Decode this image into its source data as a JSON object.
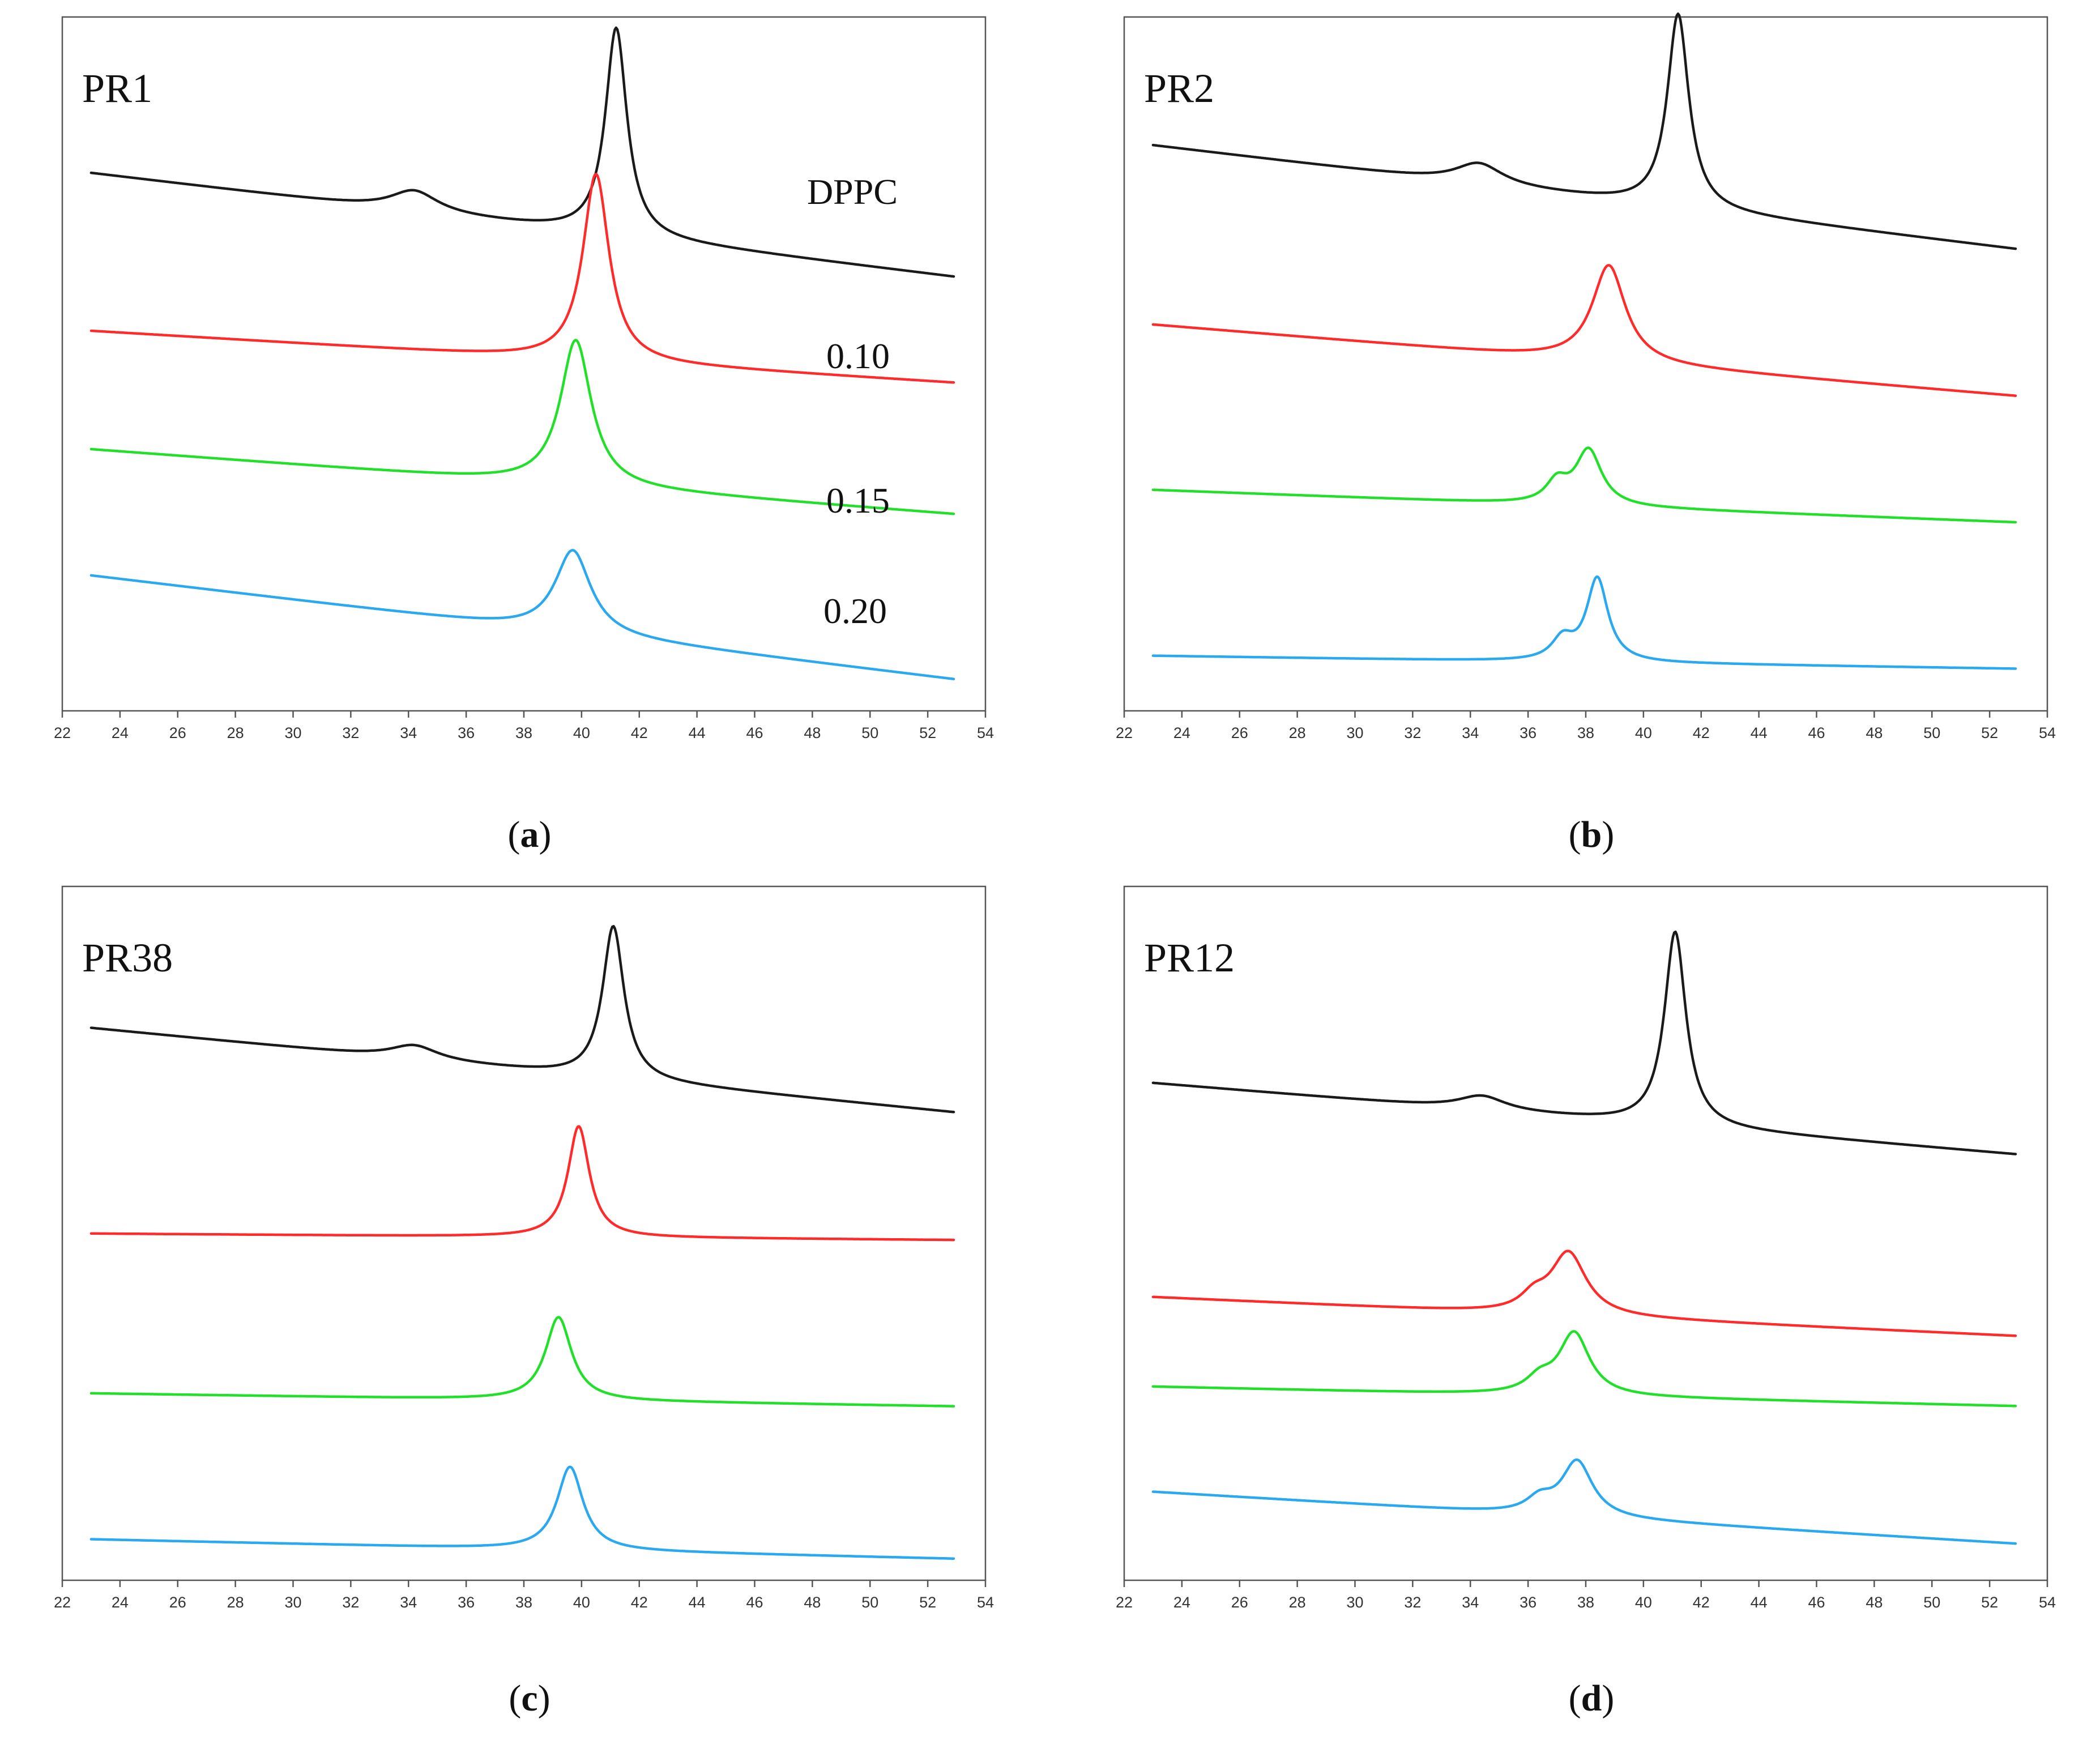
{
  "colors": {
    "DPPC": "#1a1a1a",
    "0.10": "#ff2a2a",
    "0.15": "#22e02a",
    "0.20": "#2aa8f0"
  },
  "chart_data": [
    {
      "type": "line",
      "title": "PR1",
      "caption_letter": "a",
      "xlim": [
        22,
        54
      ],
      "xticks": [
        "22",
        "24",
        "26",
        "28",
        "30",
        "32",
        "34",
        "36",
        "38",
        "40",
        "42",
        "44",
        "46",
        "48",
        "50",
        "52",
        "54"
      ],
      "series": [
        {
          "name": "DPPC",
          "label": "DPPC",
          "color_key": "DPPC",
          "start": 0.78,
          "end": 0.62,
          "peaks": [
            {
              "x": 41.2,
              "h": 0.3,
              "w": 0.45
            },
            {
              "x": 34.2,
              "h": 0.03,
              "w": 1.0
            }
          ]
        },
        {
          "name": "0.10",
          "label": "0.10",
          "color_key": "0.10",
          "start": 0.55,
          "end": 0.47,
          "peaks": [
            {
              "x": 40.5,
              "h": 0.27,
              "w": 0.55
            }
          ]
        },
        {
          "name": "0.15",
          "label": "0.15",
          "color_key": "0.15",
          "start": 0.38,
          "end": 0.28,
          "peaks": [
            {
              "x": 39.8,
              "h": 0.21,
              "w": 0.65
            }
          ]
        },
        {
          "name": "0.20",
          "label": "0.20",
          "color_key": "0.20",
          "start": 0.2,
          "end": 0.04,
          "peaks": [
            {
              "x": 39.7,
              "h": 0.12,
              "w": 0.75
            }
          ]
        }
      ]
    },
    {
      "type": "line",
      "title": "PR2",
      "caption_letter": "b",
      "xlim": [
        22,
        54
      ],
      "xticks": [
        "22",
        "24",
        "26",
        "28",
        "30",
        "32",
        "34",
        "36",
        "38",
        "40",
        "42",
        "44",
        "46",
        "48",
        "50",
        "52",
        "54"
      ],
      "series": [
        {
          "name": "DPPC",
          "label": "",
          "color_key": "DPPC",
          "start": 0.82,
          "end": 0.66,
          "peaks": [
            {
              "x": 41.2,
              "h": 0.28,
              "w": 0.45
            },
            {
              "x": 34.3,
              "h": 0.03,
              "w": 1.0
            }
          ]
        },
        {
          "name": "0.10",
          "label": "",
          "color_key": "0.10",
          "start": 0.56,
          "end": 0.45,
          "peaks": [
            {
              "x": 38.8,
              "h": 0.14,
              "w": 0.7
            }
          ]
        },
        {
          "name": "0.15",
          "label": "",
          "color_key": "0.15",
          "start": 0.32,
          "end": 0.27,
          "peaks": [
            {
              "x": 38.1,
              "h": 0.08,
              "w": 0.55
            },
            {
              "x": 37.0,
              "h": 0.03,
              "w": 0.45
            }
          ]
        },
        {
          "name": "0.20",
          "label": "",
          "color_key": "0.20",
          "start": 0.08,
          "end": 0.06,
          "peaks": [
            {
              "x": 38.4,
              "h": 0.12,
              "w": 0.45
            },
            {
              "x": 37.2,
              "h": 0.03,
              "w": 0.45
            }
          ]
        }
      ]
    },
    {
      "type": "line",
      "title": "PR38",
      "caption_letter": "c",
      "xlim": [
        22,
        54
      ],
      "xticks": [
        "22",
        "24",
        "26",
        "28",
        "30",
        "32",
        "34",
        "36",
        "38",
        "40",
        "42",
        "44",
        "46",
        "48",
        "50",
        "52",
        "54"
      ],
      "series": [
        {
          "name": "DPPC",
          "label": "",
          "color_key": "DPPC",
          "start": 0.8,
          "end": 0.67,
          "peaks": [
            {
              "x": 41.1,
              "h": 0.22,
              "w": 0.45
            },
            {
              "x": 34.2,
              "h": 0.02,
              "w": 1.0
            }
          ]
        },
        {
          "name": "0.10",
          "label": "",
          "color_key": "0.10",
          "start": 0.5,
          "end": 0.49,
          "peaks": [
            {
              "x": 39.9,
              "h": 0.16,
              "w": 0.45
            }
          ]
        },
        {
          "name": "0.15",
          "label": "",
          "color_key": "0.15",
          "start": 0.27,
          "end": 0.25,
          "peaks": [
            {
              "x": 39.2,
              "h": 0.12,
              "w": 0.55
            }
          ]
        },
        {
          "name": "0.20",
          "label": "",
          "color_key": "0.20",
          "start": 0.06,
          "end": 0.03,
          "peaks": [
            {
              "x": 39.6,
              "h": 0.12,
              "w": 0.55
            }
          ]
        }
      ]
    },
    {
      "type": "line",
      "title": "PR12",
      "caption_letter": "d",
      "xlim": [
        22,
        54
      ],
      "xticks": [
        "22",
        "24",
        "26",
        "28",
        "30",
        "32",
        "34",
        "36",
        "38",
        "40",
        "42",
        "44",
        "46",
        "48",
        "50",
        "52",
        "54"
      ],
      "series": [
        {
          "name": "DPPC",
          "label": "",
          "color_key": "DPPC",
          "start": 0.72,
          "end": 0.61,
          "peaks": [
            {
              "x": 41.1,
              "h": 0.28,
              "w": 0.45
            },
            {
              "x": 34.4,
              "h": 0.02,
              "w": 1.0
            }
          ]
        },
        {
          "name": "0.10",
          "label": "",
          "color_key": "0.10",
          "start": 0.41,
          "end": 0.35,
          "peaks": [
            {
              "x": 37.4,
              "h": 0.09,
              "w": 0.75
            },
            {
              "x": 36.2,
              "h": 0.02,
              "w": 0.55
            }
          ]
        },
        {
          "name": "0.15",
          "label": "",
          "color_key": "0.15",
          "start": 0.28,
          "end": 0.25,
          "peaks": [
            {
              "x": 37.6,
              "h": 0.09,
              "w": 0.65
            },
            {
              "x": 36.4,
              "h": 0.02,
              "w": 0.55
            }
          ]
        },
        {
          "name": "0.20",
          "label": "",
          "color_key": "0.20",
          "start": 0.13,
          "end": 0.05,
          "peaks": [
            {
              "x": 37.7,
              "h": 0.08,
              "w": 0.65
            },
            {
              "x": 36.4,
              "h": 0.02,
              "w": 0.55
            }
          ]
        }
      ]
    }
  ]
}
